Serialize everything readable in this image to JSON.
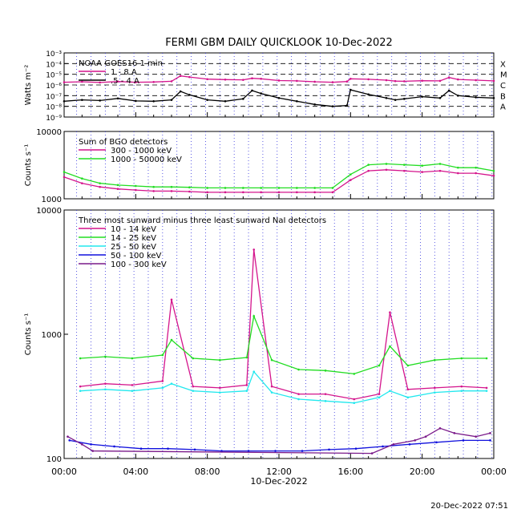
{
  "title": "FERMI GBM DAILY QUICKLOOK",
  "date": "10-Dec-2022",
  "footer_timestamp": "20-Dec-2022 07:51",
  "x_ticks": [
    "00:00",
    "04:00",
    "08:00",
    "12:00",
    "16:00",
    "20:00",
    "00:00"
  ],
  "chart_data": [
    {
      "type": "line",
      "scale": "log",
      "ylabel": "Watts m⁻²",
      "ylim": [
        1e-09,
        0.001
      ],
      "y_ticks": [
        "10⁻³",
        "10⁻⁴",
        "10⁻⁵",
        "10⁻⁶",
        "10⁻⁷",
        "10⁻⁸",
        "10⁻⁹"
      ],
      "flare_class_labels": [
        "X",
        "M",
        "C",
        "B",
        "A"
      ],
      "legend_title": "NOAA GOES16 1 min",
      "series": [
        {
          "name": "1 - 8 A",
          "color": "#d4148c",
          "x_hours": [
            0,
            1,
            2,
            3,
            4,
            5,
            6,
            6.5,
            7,
            8,
            9,
            10,
            10.5,
            11,
            12,
            13,
            14,
            15,
            15.8,
            16,
            17,
            18,
            18.5,
            19,
            20,
            21,
            21.5,
            22,
            23,
            24
          ],
          "values": [
            1.8e-06,
            2e-06,
            1.7e-06,
            2.1e-06,
            1.8e-06,
            1.9e-06,
            2.2e-06,
            7e-06,
            5.5e-06,
            3.5e-06,
            3.2e-06,
            3e-06,
            4.2e-06,
            3.8e-06,
            2.6e-06,
            2.4e-06,
            2e-06,
            1.8e-06,
            2.1e-06,
            3.8e-06,
            3.4e-06,
            2.8e-06,
            2.3e-06,
            2.2e-06,
            2.5e-06,
            2.4e-06,
            5e-06,
            3.3e-06,
            2.8e-06,
            2.4e-06
          ]
        },
        {
          "name": ".5 - 4 A",
          "color": "#000000",
          "x_hours": [
            0,
            1,
            2,
            3,
            4,
            5,
            6,
            6.5,
            7,
            8,
            9,
            10,
            10.5,
            11,
            12,
            13,
            14,
            15,
            15.8,
            16,
            17,
            18,
            18.5,
            19,
            20,
            21,
            21.5,
            22,
            23,
            24
          ],
          "values": [
            3e-08,
            4e-08,
            3.5e-08,
            5.5e-08,
            3.2e-08,
            3e-08,
            4e-08,
            2.5e-07,
            1.2e-07,
            4e-08,
            3e-08,
            5e-08,
            3e-07,
            1.6e-07,
            6e-08,
            3e-08,
            1.5e-08,
            1e-08,
            1.2e-08,
            3.5e-07,
            1.3e-07,
            6e-08,
            4e-08,
            5e-08,
            8e-08,
            6e-08,
            3e-07,
            1e-07,
            7e-08,
            6e-08
          ]
        }
      ]
    },
    {
      "type": "line",
      "scale": "log",
      "ylabel": "Counts s⁻¹",
      "ylim": [
        1000,
        10000
      ],
      "y_ticks": [
        "10000",
        "1000"
      ],
      "legend_title": "Sum of BGO detectors",
      "series": [
        {
          "name": "300 - 1000 keV",
          "color": "#d4148c",
          "x_hours": [
            0,
            1,
            2,
            3,
            4,
            5,
            6,
            7,
            8,
            9,
            10,
            11,
            12,
            13,
            14,
            15,
            16,
            17,
            18,
            19,
            20,
            21,
            22,
            23,
            24
          ],
          "values": [
            2100,
            1700,
            1500,
            1400,
            1350,
            1300,
            1300,
            1280,
            1250,
            1250,
            1250,
            1250,
            1250,
            1250,
            1250,
            1250,
            1900,
            2600,
            2700,
            2600,
            2500,
            2600,
            2400,
            2400,
            2200
          ]
        },
        {
          "name": "1000 - 50000 keV",
          "color": "#22dd22",
          "x_hours": [
            0,
            1,
            2,
            3,
            4,
            5,
            6,
            7,
            8,
            9,
            10,
            11,
            12,
            13,
            14,
            15,
            16,
            17,
            18,
            19,
            20,
            21,
            22,
            23,
            24
          ],
          "values": [
            2500,
            2000,
            1700,
            1600,
            1550,
            1500,
            1500,
            1480,
            1450,
            1450,
            1450,
            1450,
            1450,
            1450,
            1450,
            1450,
            2300,
            3200,
            3300,
            3200,
            3100,
            3300,
            2900,
            2900,
            2600
          ]
        }
      ]
    },
    {
      "type": "line",
      "scale": "log",
      "ylabel": "Counts s⁻¹",
      "ylim": [
        100,
        10000
      ],
      "y_ticks": [
        "10000",
        "1000",
        "100"
      ],
      "legend_title": "Three most sunward minus three least sunward NaI detectors",
      "series": [
        {
          "name": "10 - 14 keV",
          "color": "#d4148c",
          "x_hours": [
            0.9,
            2.3,
            3.8,
            5.5,
            6.0,
            7.2,
            8.7,
            10.2,
            10.6,
            11.6,
            13.1,
            14.6,
            16.2,
            17.6,
            18.2,
            19.2,
            20.7,
            22.2,
            23.6
          ],
          "values": [
            380,
            400,
            390,
            420,
            1900,
            380,
            370,
            390,
            4800,
            380,
            330,
            330,
            300,
            330,
            1500,
            360,
            370,
            380,
            370
          ]
        },
        {
          "name": "14 - 25 keV",
          "color": "#22dd22",
          "x_hours": [
            0.9,
            2.3,
            3.8,
            5.5,
            6.0,
            7.2,
            8.7,
            10.2,
            10.6,
            11.6,
            13.1,
            14.6,
            16.2,
            17.6,
            18.2,
            19.2,
            20.7,
            22.2,
            23.6
          ],
          "values": [
            640,
            660,
            640,
            680,
            900,
            640,
            620,
            650,
            1400,
            620,
            520,
            510,
            480,
            560,
            800,
            560,
            620,
            640,
            640
          ]
        },
        {
          "name": "25 - 50 keV",
          "color": "#22e8ee",
          "x_hours": [
            0.9,
            2.3,
            3.8,
            5.5,
            6.0,
            7.2,
            8.7,
            10.2,
            10.6,
            11.6,
            13.1,
            14.6,
            16.2,
            17.6,
            18.2,
            19.2,
            20.7,
            22.2,
            23.6
          ],
          "values": [
            350,
            360,
            350,
            370,
            400,
            350,
            340,
            350,
            500,
            340,
            300,
            290,
            280,
            310,
            350,
            310,
            340,
            350,
            350
          ]
        },
        {
          "name": "50 - 100 keV",
          "color": "#1010dd",
          "x_hours": [
            0.3,
            1.5,
            2.8,
            4.3,
            5.8,
            7.3,
            8.8,
            10.3,
            11.8,
            13.3,
            14.8,
            16.3,
            17.8,
            19.3,
            20.8,
            22.3,
            23.8
          ],
          "values": [
            140,
            130,
            125,
            120,
            120,
            118,
            115,
            115,
            115,
            115,
            118,
            120,
            125,
            130,
            135,
            140,
            140
          ]
        },
        {
          "name": "100 - 300 keV",
          "color": "#7a1a8a",
          "x_hours": [
            0.2,
            1.0,
            1.6,
            17.2,
            18.4,
            19.6,
            20.2,
            21.0,
            21.8,
            23.0,
            23.8
          ],
          "values": [
            150,
            130,
            115,
            110,
            130,
            140,
            150,
            175,
            160,
            150,
            160
          ]
        }
      ]
    }
  ]
}
